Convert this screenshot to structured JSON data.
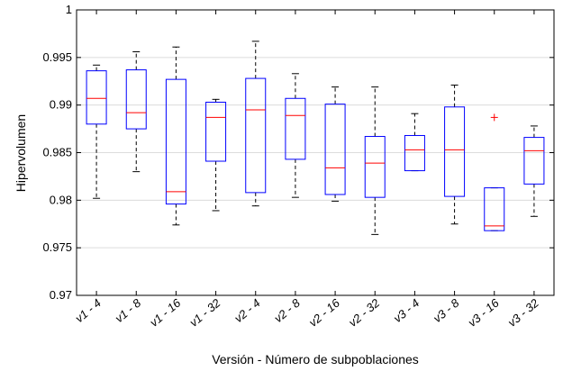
{
  "chart_data": {
    "type": "box",
    "xlabel": "Versión - Número de subpoblaciones",
    "ylabel": "Hipervolumen",
    "ylim": [
      0.97,
      1.0
    ],
    "yticks": [
      0.97,
      0.975,
      0.98,
      0.985,
      0.99,
      0.995,
      1
    ],
    "ytick_labels": [
      "0.97",
      "0.975",
      "0.98",
      "0.985",
      "0.99",
      "0.995",
      "1"
    ],
    "grid": "horizontal",
    "box_color": "#0000ff",
    "median_color": "#ff0000",
    "whisker_color": "#000000",
    "outlier_color": "#ff0000",
    "categories": [
      "v1 - 4",
      "v1 - 8",
      "v1 - 16",
      "v1 - 32",
      "v2 - 4",
      "v2 - 8",
      "v2 - 16",
      "v2 - 32",
      "v3 - 4",
      "v3 - 8",
      "v3 - 16",
      "v3 - 32"
    ],
    "boxes": [
      {
        "whislo": 0.9802,
        "q1": 0.988,
        "med": 0.9907,
        "q3": 0.9936,
        "whishi": 0.9942,
        "outliers": []
      },
      {
        "whislo": 0.983,
        "q1": 0.9875,
        "med": 0.9892,
        "q3": 0.9937,
        "whishi": 0.9956,
        "outliers": []
      },
      {
        "whislo": 0.9774,
        "q1": 0.9796,
        "med": 0.9809,
        "q3": 0.9927,
        "whishi": 0.9961,
        "outliers": []
      },
      {
        "whislo": 0.9789,
        "q1": 0.9841,
        "med": 0.9887,
        "q3": 0.9903,
        "whishi": 0.9906,
        "outliers": []
      },
      {
        "whislo": 0.9794,
        "q1": 0.9808,
        "med": 0.9895,
        "q3": 0.9928,
        "whishi": 0.9967,
        "outliers": []
      },
      {
        "whislo": 0.9803,
        "q1": 0.9843,
        "med": 0.9889,
        "q3": 0.9907,
        "whishi": 0.9933,
        "outliers": []
      },
      {
        "whislo": 0.9799,
        "q1": 0.9806,
        "med": 0.9834,
        "q3": 0.9901,
        "whishi": 0.9919,
        "outliers": []
      },
      {
        "whislo": 0.9764,
        "q1": 0.9803,
        "med": 0.9839,
        "q3": 0.9867,
        "whishi": 0.9919,
        "outliers": []
      },
      {
        "whislo": 0.9831,
        "q1": 0.9831,
        "med": 0.9853,
        "q3": 0.9868,
        "whishi": 0.9891,
        "outliers": []
      },
      {
        "whislo": 0.9775,
        "q1": 0.9804,
        "med": 0.9853,
        "q3": 0.9898,
        "whishi": 0.9921,
        "outliers": []
      },
      {
        "whislo": 0.9768,
        "q1": 0.9768,
        "med": 0.9773,
        "q3": 0.9813,
        "whishi": 0.9813,
        "outliers": [
          0.9887
        ]
      },
      {
        "whislo": 0.9783,
        "q1": 0.9817,
        "med": 0.9852,
        "q3": 0.9866,
        "whishi": 0.9878,
        "outliers": []
      }
    ]
  }
}
